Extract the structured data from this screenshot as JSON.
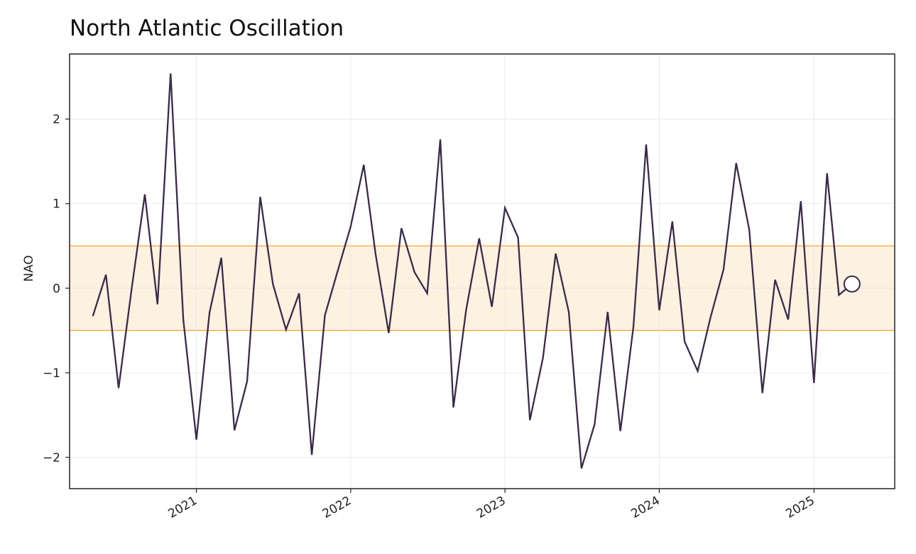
{
  "chart_data": {
    "type": "line",
    "title": "North Atlantic Oscillation",
    "xlabel": "",
    "ylabel": "NAO",
    "x_tick_labels": [
      "2021",
      "2022",
      "2023",
      "2024",
      "2025"
    ],
    "y_tick_labels": [
      "−2",
      "−1",
      "0",
      "1",
      "2"
    ],
    "y_ticks": [
      -2,
      -1,
      0,
      1,
      2
    ],
    "ylim": [
      -2.37,
      2.77
    ],
    "xlim": [
      "2020-03-07",
      "2025-07-11"
    ],
    "grid": true,
    "reference_band": {
      "from": -0.5,
      "to": 0.5,
      "color": "#f0a830",
      "fill": "#fdf1e0"
    },
    "last_point_marker": "open-circle",
    "line_color": "#3a2a4a",
    "series": [
      {
        "values": [
          [
            "2020-05-01",
            -0.33
          ],
          [
            "2020-06-01",
            0.16
          ],
          [
            "2020-07-01",
            -1.18
          ],
          [
            "2020-08-01",
            0.0
          ],
          [
            "2020-09-01",
            1.11
          ],
          [
            "2020-10-01",
            -0.19
          ],
          [
            "2020-11-01",
            2.54
          ],
          [
            "2020-12-01",
            -0.37
          ],
          [
            "2021-01-01",
            -1.79
          ],
          [
            "2021-02-01",
            -0.29
          ],
          [
            "2021-03-01",
            0.36
          ],
          [
            "2021-04-01",
            -1.68
          ],
          [
            "2021-05-01",
            -1.1
          ],
          [
            "2021-06-01",
            1.08
          ],
          [
            "2021-07-01",
            0.05
          ],
          [
            "2021-08-01",
            -0.49
          ],
          [
            "2021-09-01",
            -0.06
          ],
          [
            "2021-10-01",
            -1.97
          ],
          [
            "2021-11-01",
            -0.32
          ],
          [
            "2021-12-01",
            0.2
          ],
          [
            "2022-01-01",
            0.73
          ],
          [
            "2022-02-01",
            1.46
          ],
          [
            "2022-03-01",
            0.4
          ],
          [
            "2022-04-01",
            -0.53
          ],
          [
            "2022-05-01",
            0.71
          ],
          [
            "2022-06-01",
            0.19
          ],
          [
            "2022-07-01",
            -0.06
          ],
          [
            "2022-08-01",
            1.76
          ],
          [
            "2022-09-01",
            -1.41
          ],
          [
            "2022-10-01",
            -0.26
          ],
          [
            "2022-11-01",
            0.59
          ],
          [
            "2022-12-01",
            -0.22
          ],
          [
            "2023-01-01",
            0.95
          ],
          [
            "2023-02-01",
            0.6
          ],
          [
            "2023-03-01",
            -1.56
          ],
          [
            "2023-04-01",
            -0.82
          ],
          [
            "2023-05-01",
            0.41
          ],
          [
            "2023-06-01",
            -0.28
          ],
          [
            "2023-07-01",
            -2.13
          ],
          [
            "2023-08-01",
            -1.61
          ],
          [
            "2023-09-01",
            -0.28
          ],
          [
            "2023-10-01",
            -1.69
          ],
          [
            "2023-11-01",
            -0.45
          ],
          [
            "2023-12-01",
            1.7
          ],
          [
            "2024-01-01",
            -0.26
          ],
          [
            "2024-02-01",
            0.79
          ],
          [
            "2024-03-01",
            -0.63
          ],
          [
            "2024-04-01",
            -0.98
          ],
          [
            "2024-05-01",
            -0.35
          ],
          [
            "2024-06-01",
            0.22
          ],
          [
            "2024-07-01",
            1.48
          ],
          [
            "2024-08-01",
            0.69
          ],
          [
            "2024-09-01",
            -1.24
          ],
          [
            "2024-10-01",
            0.1
          ],
          [
            "2024-11-01",
            -0.37
          ],
          [
            "2024-12-01",
            1.03
          ],
          [
            "2025-01-01",
            -1.12
          ],
          [
            "2025-02-01",
            1.36
          ],
          [
            "2025-03-01",
            -0.08
          ],
          [
            "2025-04-01",
            0.05
          ]
        ]
      }
    ]
  }
}
